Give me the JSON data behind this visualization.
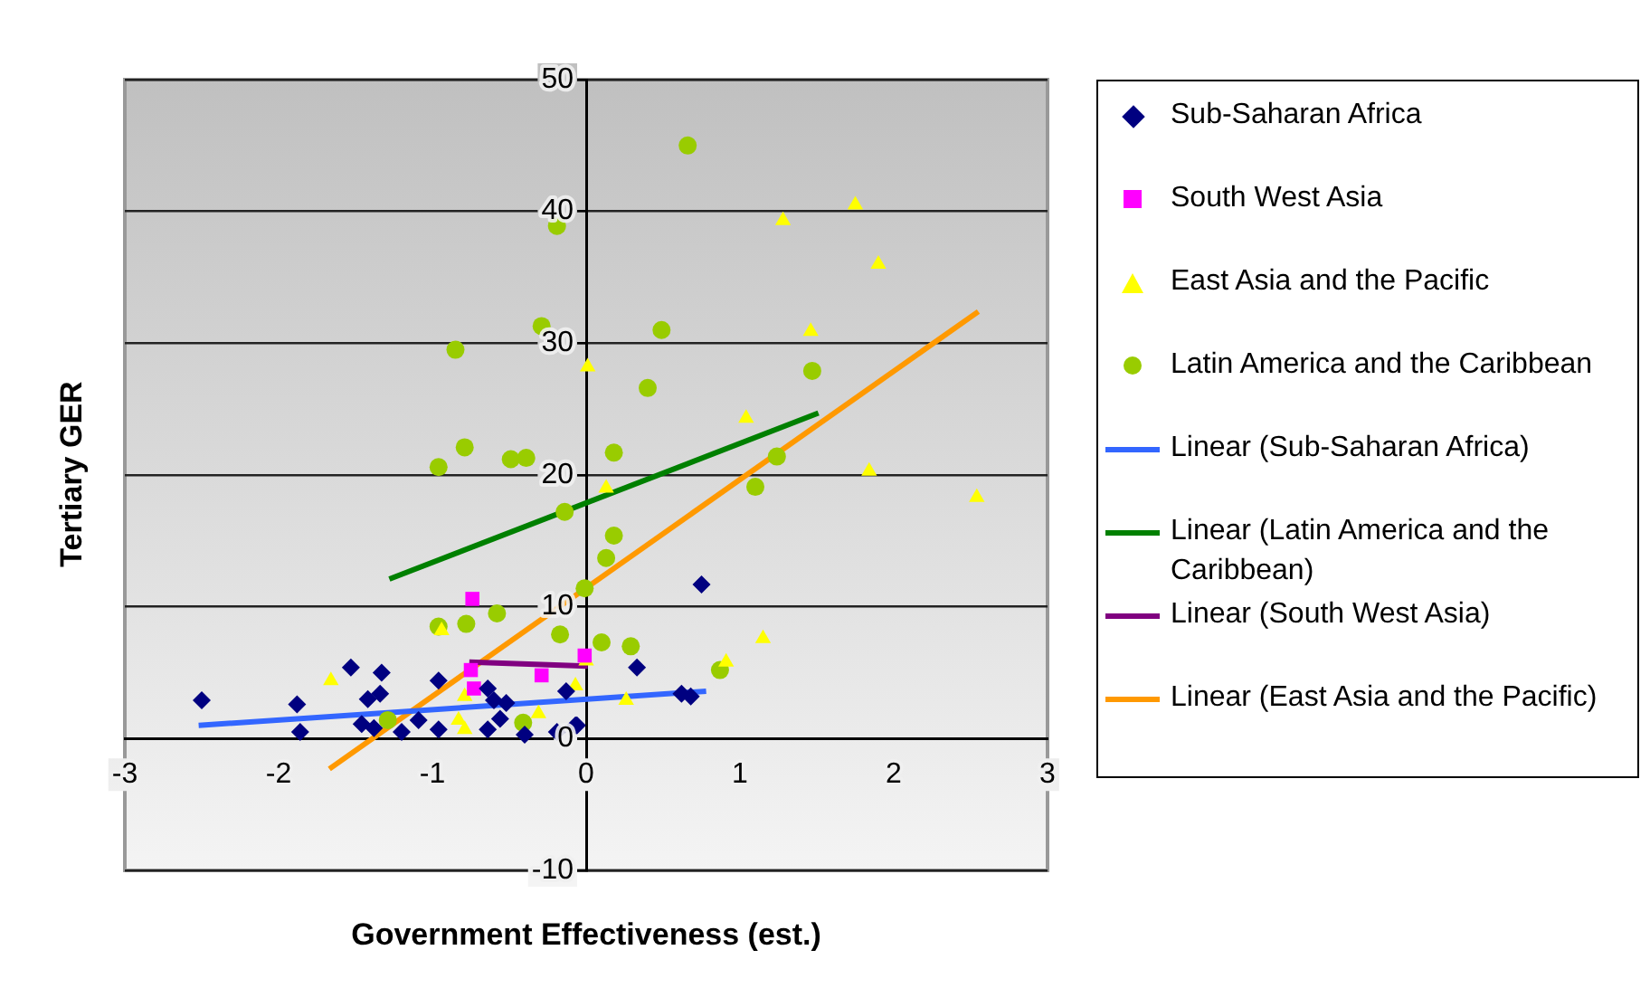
{
  "chart_data": {
    "type": "scatter",
    "xlabel": "Government Effectiveness (est.)",
    "ylabel": "Tertiary GER",
    "xlim": [
      -3,
      3
    ],
    "xticks": [
      -3,
      -2,
      -1,
      0,
      1,
      2,
      3
    ],
    "ylim": [
      -10,
      50
    ],
    "yticks": [
      -10,
      0,
      10,
      20,
      30,
      40,
      50
    ],
    "grid": "y",
    "legend": "right",
    "series": [
      {
        "name": "Sub-Saharan Africa",
        "type": "scatter",
        "marker": "diamond",
        "color": "#000080",
        "x": [
          -2.5,
          -1.88,
          -1.86,
          -1.53,
          -1.33,
          -1.42,
          -1.34,
          -1.46,
          -1.38,
          -1.2,
          -1.09,
          -0.96,
          -0.96,
          -0.64,
          -0.6,
          -0.52,
          -0.64,
          -0.56,
          -0.4,
          -0.19,
          -0.07,
          -0.13,
          -0.06,
          0.33,
          0.62,
          0.68,
          0.75
        ],
        "values": [
          2.9,
          2.6,
          0.5,
          5.4,
          5,
          3,
          3.4,
          1.1,
          0.8,
          0.5,
          1.4,
          4.4,
          0.7,
          3.8,
          2.9,
          2.7,
          0.7,
          1.5,
          0.3,
          0.5,
          1,
          3.6,
          1,
          5.4,
          3.4,
          3.2,
          11.7
        ]
      },
      {
        "name": "South West Asia",
        "type": "scatter",
        "marker": "square",
        "color": "#ff00ff",
        "x": [
          -0.74,
          -0.75,
          -0.73,
          -0.29,
          -0.01
        ],
        "values": [
          10.6,
          5.2,
          3.8,
          4.8,
          6.3
        ]
      },
      {
        "name": "East Asia and the Pacific",
        "type": "scatter",
        "marker": "triangle",
        "color": "#ffff00",
        "x": [
          -1.66,
          -0.94,
          -0.79,
          -0.83,
          -0.79,
          -0.31,
          -0.07,
          0,
          0.26,
          0.91,
          1.15,
          0.01,
          0.13,
          1.04,
          1.28,
          1.46,
          1.75,
          1.9,
          1.84,
          2.54
        ],
        "values": [
          4.4,
          8.2,
          3.2,
          1.4,
          0.7,
          1.9,
          4,
          5.9,
          2.9,
          5.8,
          7.6,
          28.2,
          19,
          24.3,
          39.3,
          30.9,
          40.5,
          36,
          20.3,
          18.3
        ]
      },
      {
        "name": "Latin America and the Caribbean",
        "type": "scatter",
        "marker": "circle",
        "color": "#99cc00",
        "x": [
          0.66,
          -0.19,
          -0.29,
          -0.85,
          0.49,
          0.4,
          1.47,
          -0.79,
          -0.96,
          -0.49,
          -0.39,
          0.18,
          1.24,
          1.1,
          -0.14,
          0.18,
          0.13,
          -0.96,
          -0.78,
          -0.58,
          -0.17,
          -0.01,
          0.1,
          -1.29,
          -0.41,
          0.29,
          0.87
        ],
        "values": [
          45,
          38.9,
          31.3,
          29.5,
          31,
          26.6,
          27.9,
          22.1,
          20.6,
          21.2,
          21.3,
          21.7,
          21.4,
          19.1,
          17.2,
          15.4,
          13.7,
          8.5,
          8.7,
          9.5,
          7.9,
          11.4,
          7.3,
          1.4,
          1.2,
          7,
          5.2
        ]
      },
      {
        "name": "Linear (Sub-Saharan Africa)",
        "type": "line",
        "color": "#3366ff",
        "x": [
          -2.52,
          0.78
        ],
        "values": [
          1,
          3.6
        ]
      },
      {
        "name": "Linear (Latin America and the Caribbean)",
        "type": "line",
        "color": "#008000",
        "x": [
          -1.28,
          1.51
        ],
        "values": [
          12.1,
          24.7
        ]
      },
      {
        "name": "Linear (South West Asia)",
        "type": "line",
        "color": "#800080",
        "x": [
          -0.76,
          0.01
        ],
        "values": [
          5.8,
          5.5
        ]
      },
      {
        "name": "Linear (East Asia and the Pacific)",
        "type": "line",
        "color": "#ff9900",
        "x": [
          -1.67,
          2.55
        ],
        "values": [
          -2.3,
          32.4
        ]
      }
    ]
  }
}
